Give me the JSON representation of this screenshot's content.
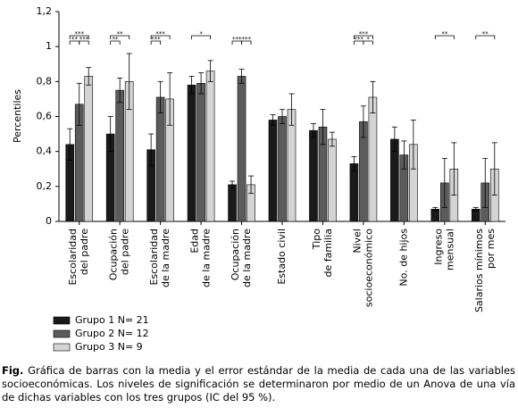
{
  "chart_data": {
    "type": "bar",
    "y_label": "Percentiles",
    "categories": [
      [
        "Escolaridad",
        "del padre"
      ],
      [
        "Ocupación",
        "del padre"
      ],
      [
        "Escolaridad",
        "de la madre"
      ],
      [
        "Edad",
        "de la madre"
      ],
      [
        "Ocupación",
        "de la madre"
      ],
      [
        "Estado civil"
      ],
      [
        "Tipo",
        "de familia"
      ],
      [
        "Nivel",
        "socioeconómico"
      ],
      [
        "No. de hijos"
      ],
      [
        "Ingreso",
        "mensual"
      ],
      [
        "Salarios mínimos",
        "por mes"
      ]
    ],
    "series": [
      {
        "name": "Grupo 1 N= 21",
        "color": "#1a1a1a",
        "values": [
          0.44,
          0.5,
          0.41,
          0.78,
          0.21,
          0.58,
          0.52,
          0.33,
          0.47,
          0.07,
          0.07
        ],
        "errors": [
          0.09,
          0.1,
          0.09,
          0.05,
          0.02,
          0.03,
          0.04,
          0.04,
          0.07,
          0.01,
          0.01
        ]
      },
      {
        "name": "Grupo 2 N= 12",
        "color": "#5c5c5c",
        "values": [
          0.67,
          0.75,
          0.71,
          0.79,
          0.83,
          0.6,
          0.54,
          0.57,
          0.38,
          0.22,
          0.22
        ],
        "errors": [
          0.12,
          0.07,
          0.09,
          0.06,
          0.04,
          0.04,
          0.1,
          0.09,
          0.08,
          0.14,
          0.14
        ]
      },
      {
        "name": "Grupo 3 N= 9",
        "color": "#d4d4d4",
        "values": [
          0.83,
          0.8,
          0.7,
          0.86,
          0.21,
          0.64,
          0.47,
          0.71,
          0.44,
          0.3,
          0.3
        ],
        "errors": [
          0.05,
          0.16,
          0.15,
          0.06,
          0.05,
          0.09,
          0.04,
          0.09,
          0.14,
          0.15,
          0.15
        ]
      }
    ],
    "significance": [
      {
        "category": 0,
        "pair": [
          0,
          1
        ],
        "label": "**"
      },
      {
        "category": 0,
        "pair": [
          1,
          2
        ],
        "label": "***"
      },
      {
        "category": 0,
        "pair": [
          0,
          2
        ],
        "label": "***"
      },
      {
        "category": 1,
        "pair": [
          0,
          1
        ],
        "label": "**"
      },
      {
        "category": 1,
        "pair": [
          0,
          2
        ],
        "label": "**"
      },
      {
        "category": 2,
        "pair": [
          0,
          1
        ],
        "label": "***"
      },
      {
        "category": 2,
        "pair": [
          0,
          2
        ],
        "label": "***"
      },
      {
        "category": 3,
        "pair": [
          0,
          2
        ],
        "label": "*"
      },
      {
        "category": 4,
        "pair": [
          0,
          1
        ],
        "label": "***"
      },
      {
        "category": 4,
        "pair": [
          1,
          2
        ],
        "label": "***"
      },
      {
        "category": 7,
        "pair": [
          0,
          1
        ],
        "label": "***"
      },
      {
        "category": 7,
        "pair": [
          1,
          2
        ],
        "label": "*"
      },
      {
        "category": 7,
        "pair": [
          0,
          2
        ],
        "label": "***"
      },
      {
        "category": 9,
        "pair": [
          0,
          2
        ],
        "label": "**"
      },
      {
        "category": 10,
        "pair": [
          0,
          2
        ],
        "label": "**"
      }
    ],
    "ylim": [
      0,
      1.2
    ],
    "yticks": [
      0,
      {
        "value": 0.2,
        "label": "0,2"
      },
      {
        "value": 0.4,
        "label": "0,4"
      },
      {
        "value": 0.6,
        "label": "0,6"
      },
      {
        "value": 0.8,
        "label": "0,8"
      },
      1,
      {
        "value": 1.2,
        "label": "1,2"
      }
    ],
    "legend": "bottom-left"
  },
  "caption": {
    "label": "Fig.",
    "text": "Gráfica de barras con la media y el error estándar de la media de cada una de las variables socioeconómicas. Los niveles de significación se determinaron por medio de un Anova de una vía de dichas variables con los tres grupos (IC del 95 %)."
  }
}
